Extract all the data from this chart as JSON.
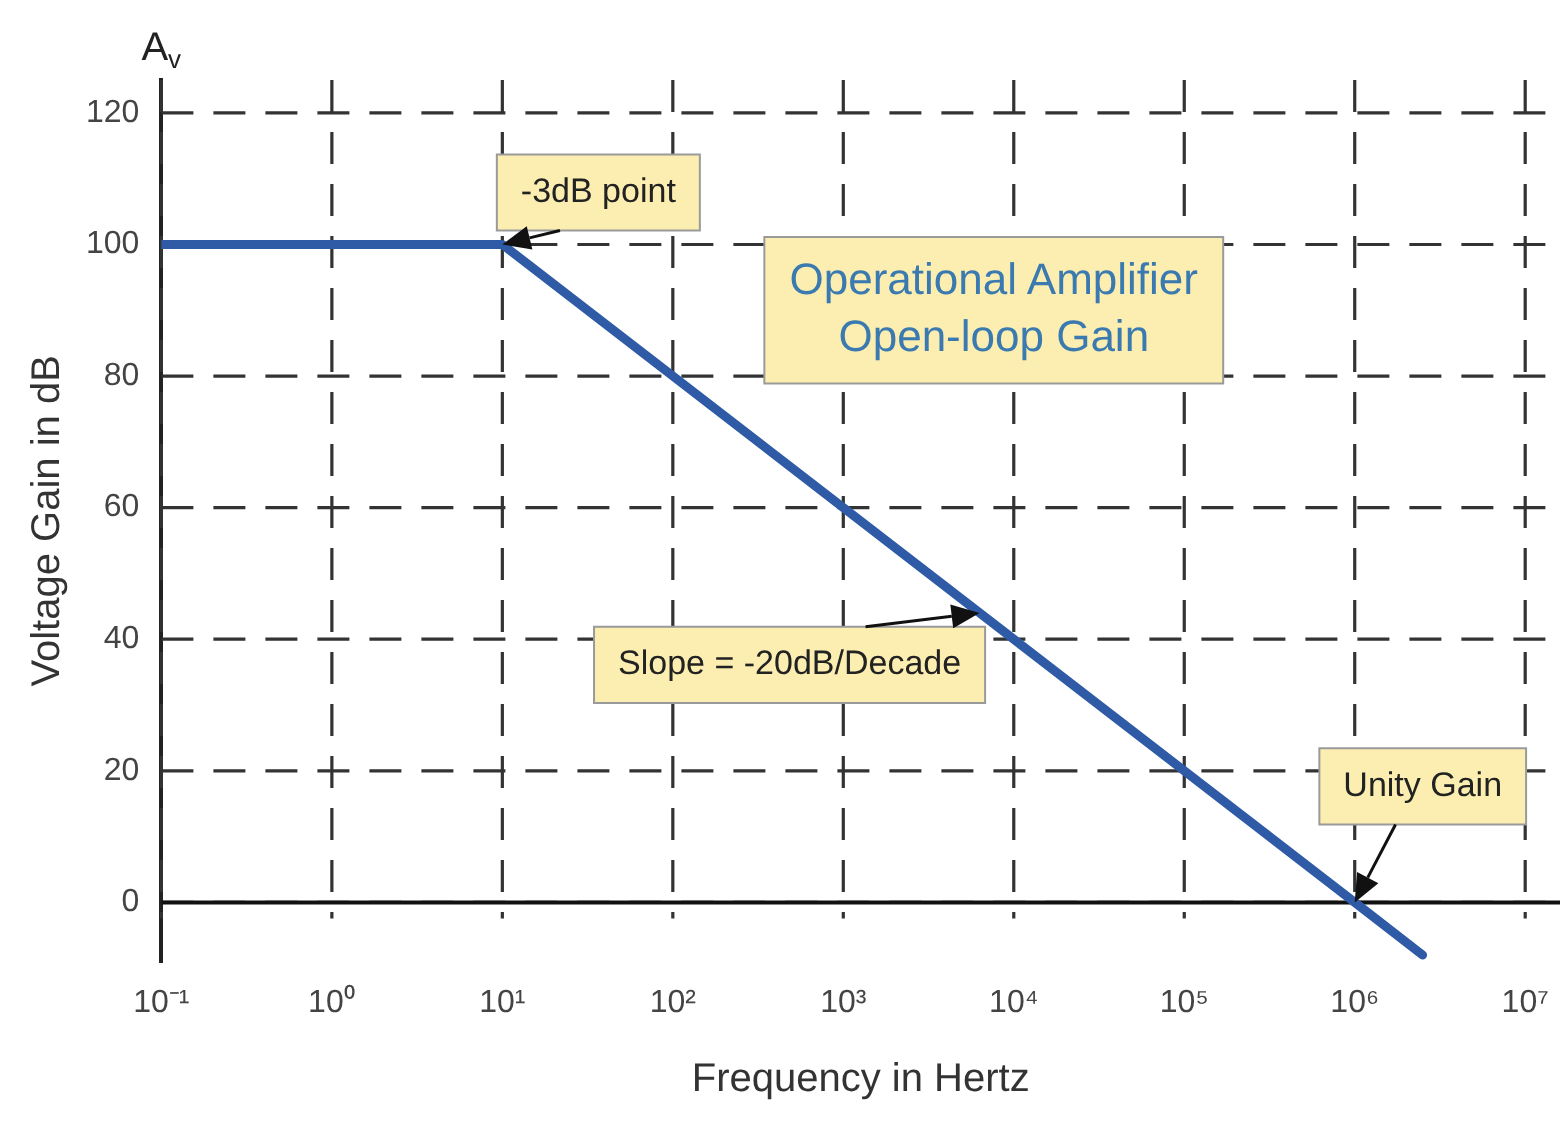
{
  "chart_data": {
    "type": "line",
    "title": "Operational Amplifier Open-loop Gain",
    "xlabel": "Frequency in Hertz",
    "ylabel": "Voltage Gain in dB",
    "x": [
      0.1,
      10,
      1000000,
      2500000
    ],
    "series": [
      {
        "color": "#2e5aa6",
        "values": [
          100,
          100,
          0,
          -8
        ]
      }
    ],
    "log": "x",
    "xlim": [
      0.1,
      16000000
    ],
    "ylim": [
      -9,
      125
    ],
    "xticks": [
      {
        "value": 0.1,
        "label": "10⁻¹"
      },
      {
        "value": 1,
        "label": "10⁰"
      },
      {
        "value": 10,
        "label": "10¹"
      },
      {
        "value": 100,
        "label": "10²"
      },
      {
        "value": 1000,
        "label": "10³"
      },
      {
        "value": 10000,
        "label": "10⁴"
      },
      {
        "value": 100000,
        "label": "10⁵"
      },
      {
        "value": 1000000,
        "label": "10⁶"
      },
      {
        "value": 10000000,
        "label": "10⁷"
      }
    ],
    "yticks": [
      0,
      20,
      40,
      60,
      80,
      100,
      120
    ],
    "grid": true,
    "legend": false,
    "marker": "none",
    "line_style": "solid",
    "ref_lines": [
      {
        "axis": "y",
        "value": 0,
        "color": "#111111",
        "line_style": "solid"
      }
    ],
    "annotations": [
      "A$_{v}$",
      {
        "text": "-3dB point",
        "x": 10,
        "y": 100
      },
      {
        "text": "Slope = -20dB/Decade",
        "x": 6300,
        "y": 44
      },
      {
        "text": "Unity Gain",
        "x": 1000000,
        "y": 0
      }
    ]
  }
}
